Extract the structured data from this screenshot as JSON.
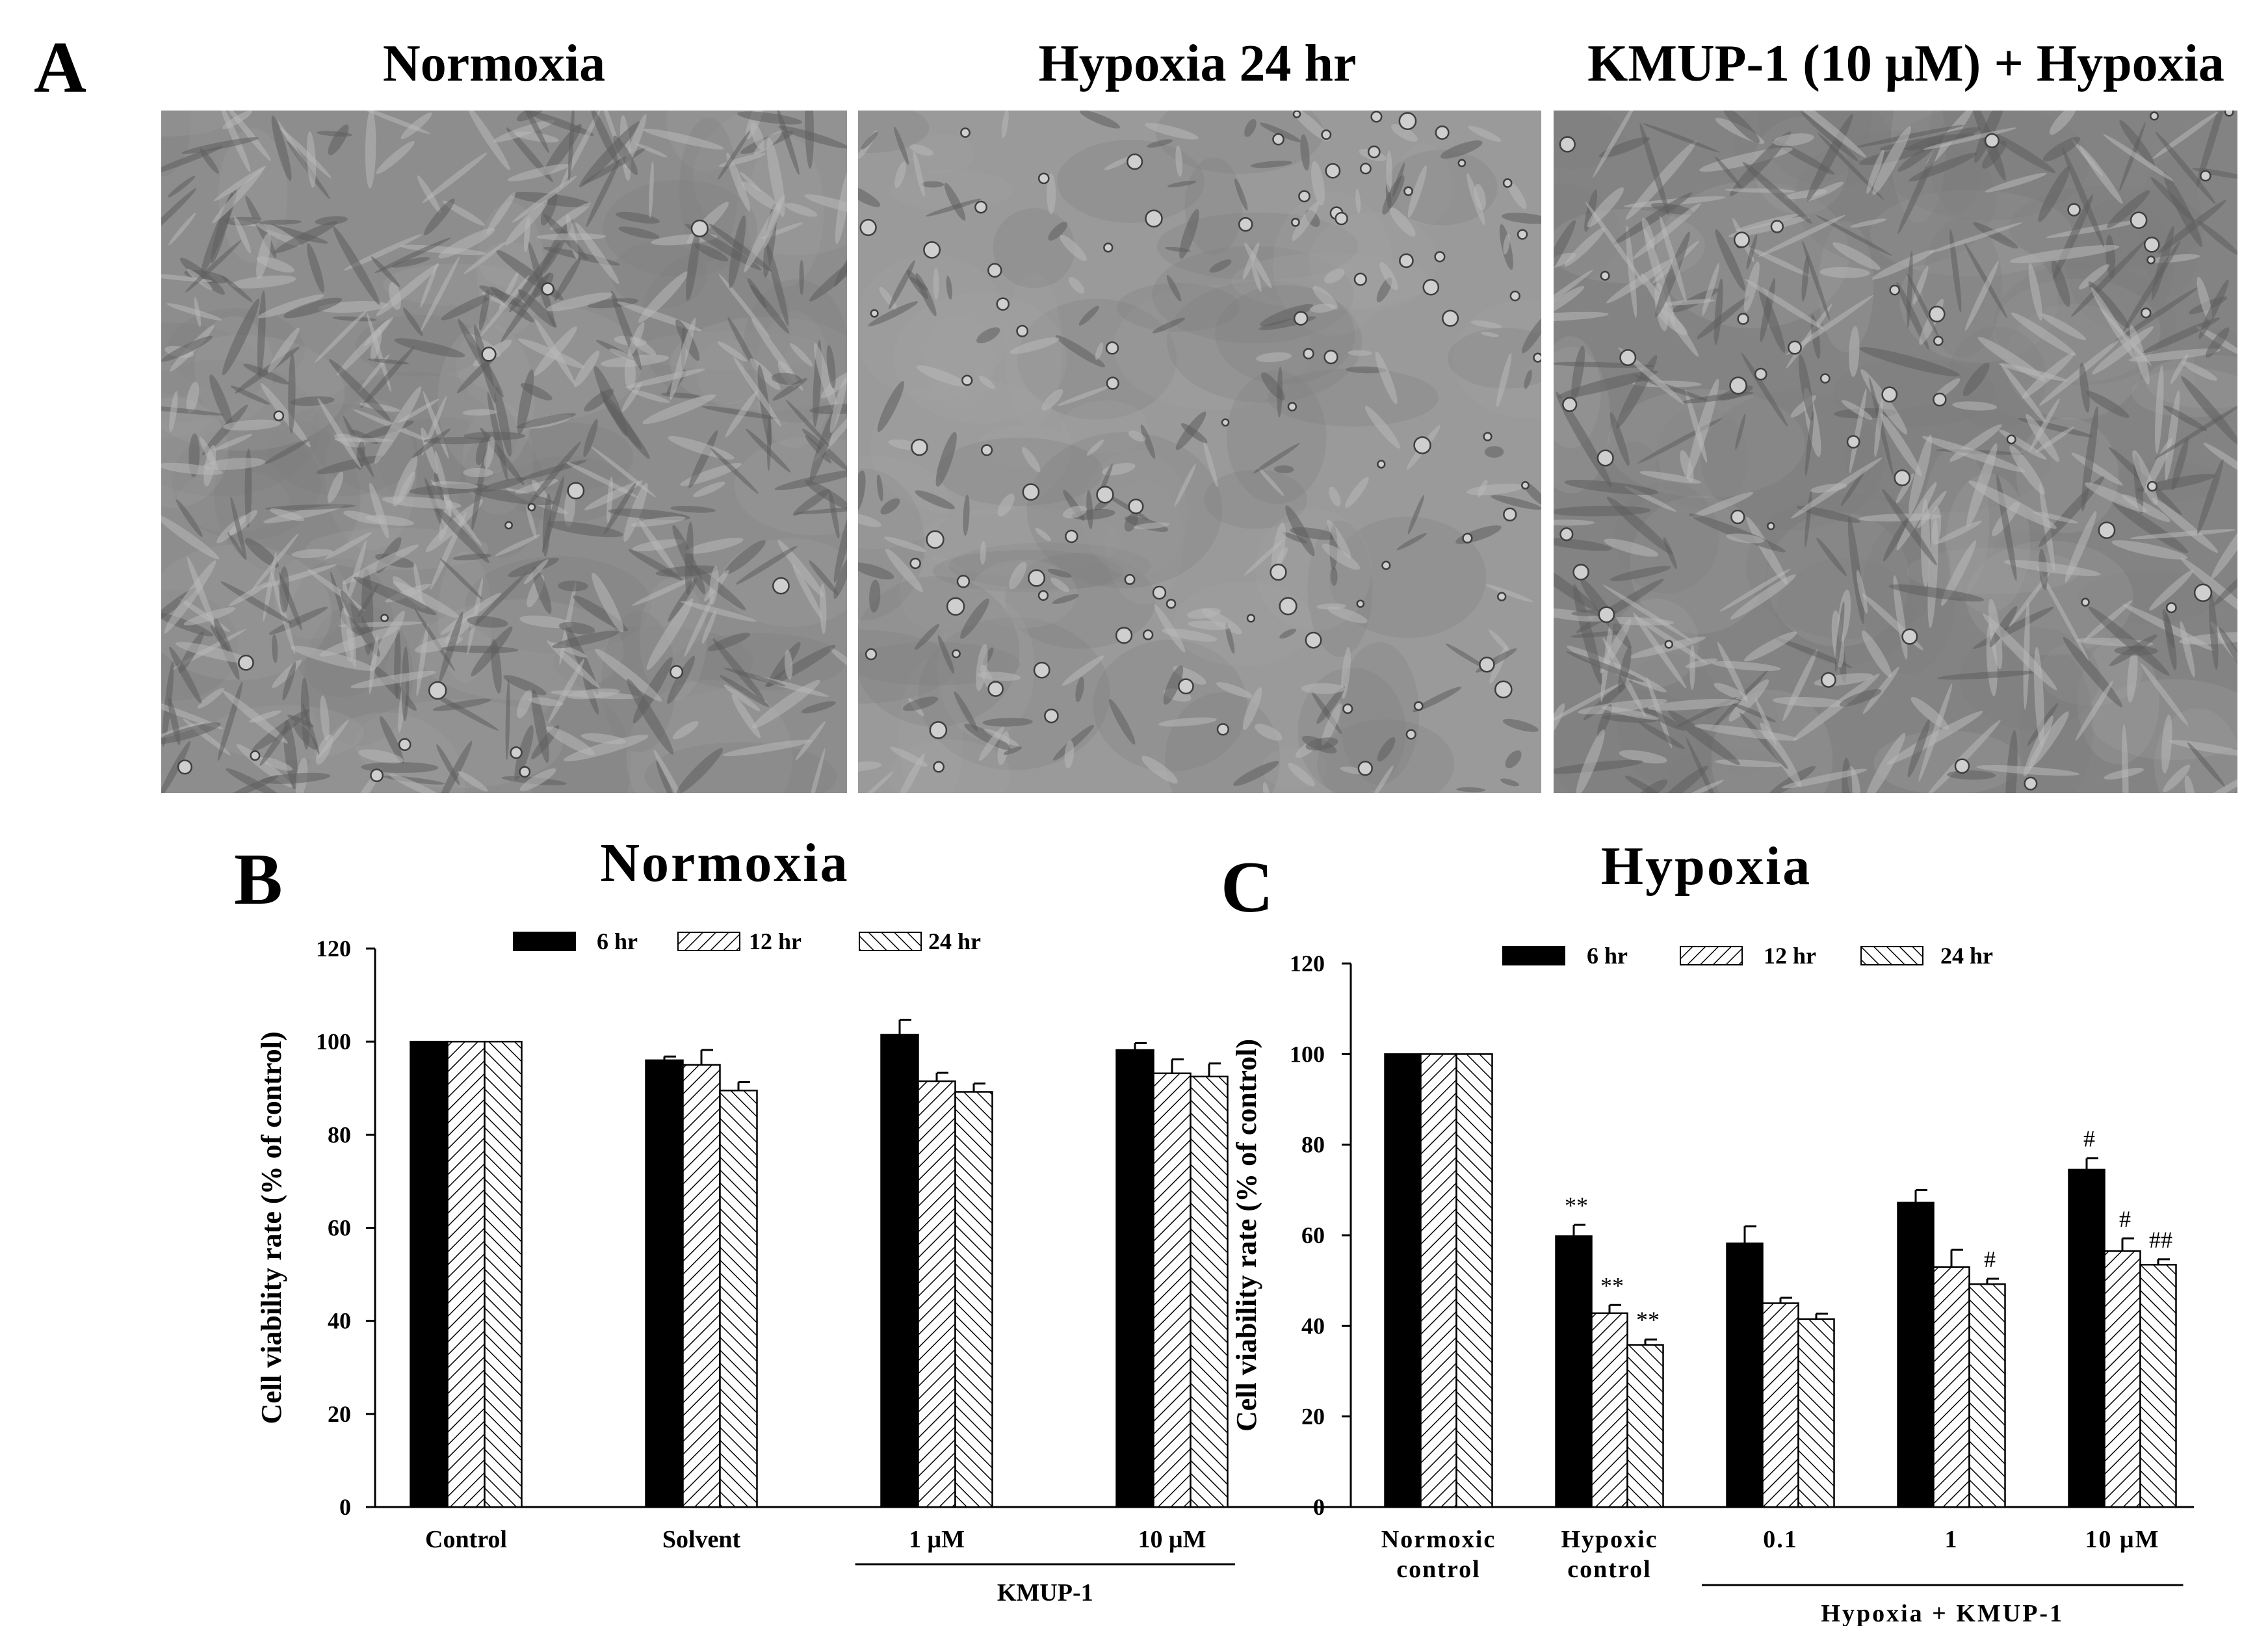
{
  "panel_a": {
    "letter": "A",
    "images": [
      {
        "title": "Normoxia",
        "texture": "dense"
      },
      {
        "title": "Hypoxia 24 hr",
        "texture": "sparse"
      },
      {
        "title": "KMUP-1 (10 μM) + Hypoxia",
        "texture": "medium"
      }
    ]
  },
  "chart_data": [
    {
      "type": "bar",
      "panel": "B",
      "title": "Normoxia",
      "ylabel": "Cell viability rate (% of control)",
      "xlabel": "",
      "ylim": [
        0,
        120
      ],
      "yticks": [
        0,
        20,
        40,
        60,
        80,
        100,
        120
      ],
      "categories": [
        "Control",
        "Solvent",
        "1 μM",
        "10 μM"
      ],
      "group_label": {
        "text": "KMUP-1",
        "from_index": 2,
        "to_index": 3
      },
      "legend_position": "top",
      "series": [
        {
          "name": "6 hr",
          "fill": "solid",
          "color": "#000000",
          "values": [
            100,
            96,
            101.5,
            98.2
          ],
          "errors": [
            0,
            0.8,
            3.2,
            1.5
          ],
          "marks": [
            "",
            "",
            "",
            ""
          ]
        },
        {
          "name": "12 hr",
          "fill": "hatch-fwd",
          "color": "#000000",
          "values": [
            100,
            95,
            91.5,
            93.2
          ],
          "errors": [
            0,
            3.2,
            1.8,
            3
          ],
          "marks": [
            "",
            "",
            "",
            ""
          ]
        },
        {
          "name": "24 hr",
          "fill": "hatch-back",
          "color": "#000000",
          "values": [
            100,
            89.5,
            89.2,
            92.5
          ],
          "errors": [
            0,
            1.8,
            1.8,
            2.8
          ],
          "marks": [
            "",
            "",
            "",
            ""
          ]
        }
      ]
    },
    {
      "type": "bar",
      "panel": "C",
      "title": "Hypoxia",
      "ylabel": "Cell viability rate (% of control)",
      "xlabel": "",
      "ylim": [
        0,
        120
      ],
      "yticks": [
        0,
        20,
        40,
        60,
        80,
        100,
        120
      ],
      "categories": [
        [
          "Normoxic",
          "control"
        ],
        [
          "Hypoxic",
          "control"
        ],
        [
          "0.1"
        ],
        [
          "1"
        ],
        [
          "10 μM"
        ]
      ],
      "group_label": {
        "text": "Hypoxia + KMUP-1",
        "from_index": 2,
        "to_index": 4
      },
      "legend_position": "top",
      "series": [
        {
          "name": "6 hr",
          "fill": "solid",
          "color": "#000000",
          "values": [
            100,
            59.8,
            58.2,
            67.2,
            74.5
          ],
          "errors": [
            0,
            2.5,
            3.8,
            2.8,
            2.5
          ],
          "marks": [
            "",
            "**",
            "",
            "",
            "#"
          ]
        },
        {
          "name": "12 hr",
          "fill": "hatch-fwd",
          "color": "#000000",
          "values": [
            100,
            42.8,
            45,
            53,
            56.5
          ],
          "errors": [
            0,
            1.8,
            1.2,
            3.8,
            2.8
          ],
          "marks": [
            "",
            "**",
            "",
            "",
            "#"
          ]
        },
        {
          "name": "24 hr",
          "fill": "hatch-back",
          "color": "#000000",
          "values": [
            100,
            35.8,
            41.5,
            49.2,
            53.5
          ],
          "errors": [
            0,
            1.2,
            1.2,
            1.2,
            1.2
          ],
          "marks": [
            "",
            "**",
            "",
            "#",
            "##"
          ]
        }
      ]
    }
  ]
}
